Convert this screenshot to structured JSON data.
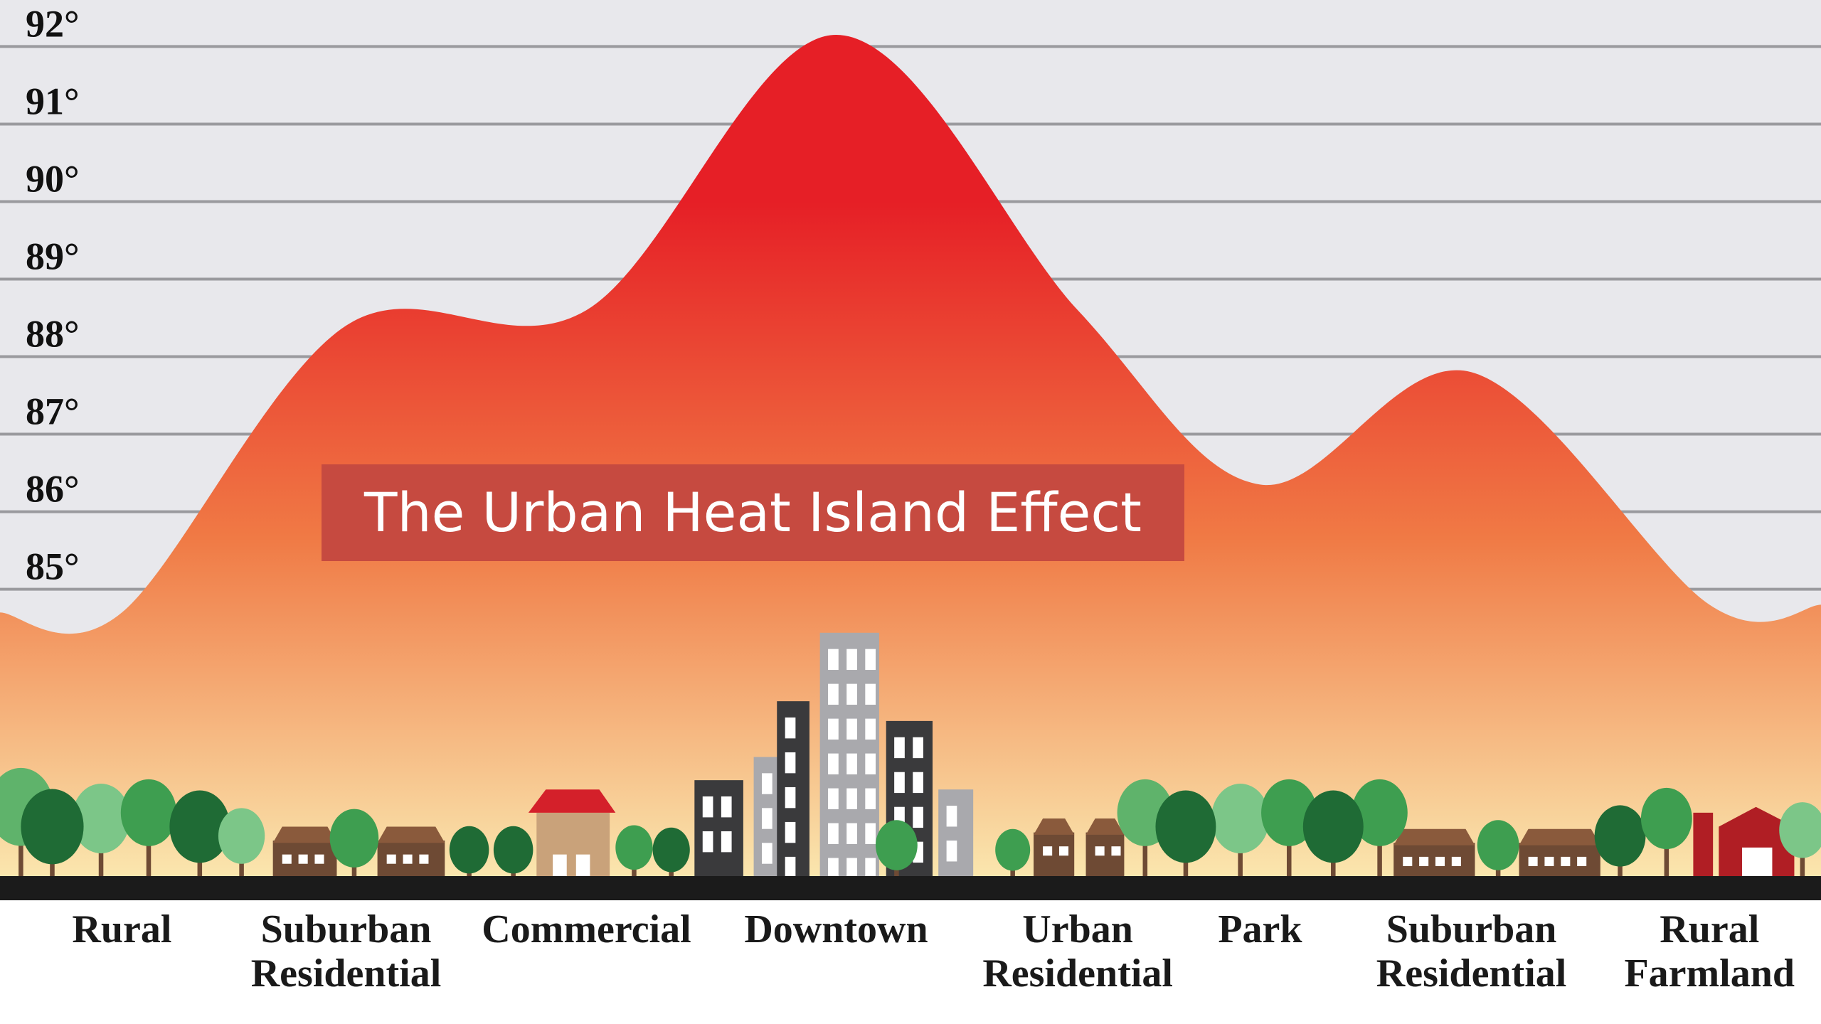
{
  "chart_data": {
    "type": "area",
    "title": "The Urban Heat Island Effect",
    "categories": [
      "Rural",
      "Suburban Residential",
      "Commercial",
      "Downtown",
      "Urban Residential",
      "Park",
      "Suburban Residential",
      "Rural Farmland"
    ],
    "values": [
      84.7,
      88.4,
      88.6,
      92.15,
      88.6,
      86.35,
      87.8,
      84.8
    ],
    "ylim": [
      81.3,
      92.6
    ],
    "yticks": [
      {
        "value": 85,
        "label": "85°"
      },
      {
        "value": 86,
        "label": "86°"
      },
      {
        "value": 87,
        "label": "87°"
      },
      {
        "value": 88,
        "label": "88°"
      },
      {
        "value": 89,
        "label": "89°"
      },
      {
        "value": 90,
        "label": "90°"
      },
      {
        "value": 91,
        "label": "91°"
      },
      {
        "value": 92,
        "label": "92°"
      }
    ],
    "grid": true,
    "colors": {
      "top": "#e61f26",
      "middle": "#f07a45",
      "bottom": "#fae6ae"
    }
  }
}
